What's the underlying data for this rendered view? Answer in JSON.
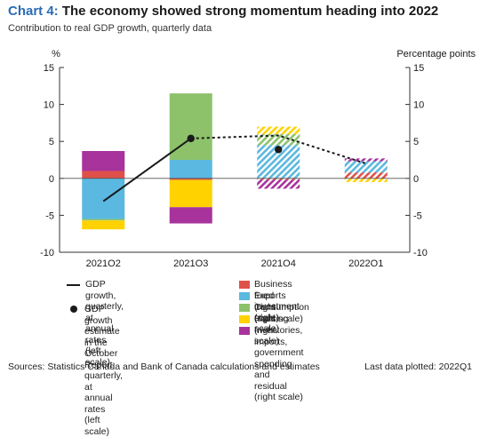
{
  "header": {
    "chart_number": "Chart 4:",
    "title_text": "The economy showed strong momentum heading into 2022",
    "subtitle": "Contribution to real GDP growth, quarterly data"
  },
  "footer": {
    "sources": "Sources: Statistics Canada and Bank of Canada calculations and estimates",
    "last_data": "Last data plotted: 2022Q1"
  },
  "legend": [
    {
      "kind": "line",
      "label": "GDP growth, quarterly, at annual\nrates (left scale)"
    },
    {
      "kind": "dot",
      "label": "GDP growth estimate in the\nOctober Report, quarterly, at\nannual rates (left scale)"
    },
    {
      "kind": "swatch",
      "color": "#e0504a",
      "label": "Business fixed investment (right scale)"
    },
    {
      "kind": "swatch",
      "color": "#5bb8e0",
      "label": "Exports (right scale)"
    },
    {
      "kind": "swatch",
      "color": "#8dc26b",
      "label": "Consumption (right scale)"
    },
    {
      "kind": "swatch",
      "color": "#ffd200",
      "label": "Housing (right scale)"
    },
    {
      "kind": "swatch",
      "color": "#a8339c",
      "label": "Inventories, imports, government\nspending and residual (right scale)"
    }
  ],
  "chart_data": {
    "type": "bar",
    "stacked": true,
    "categories": [
      "2021Q2",
      "2021Q3",
      "2021Q4",
      "2022Q1"
    ],
    "hatched_categories": [
      "2021Q4",
      "2022Q1"
    ],
    "ylabel": "%",
    "y2label": "Percentage points",
    "ylim": [
      -10,
      15
    ],
    "yticks": [
      -10,
      -5,
      0,
      5,
      10,
      15
    ],
    "colors": {
      "Business fixed investment (right scale)": "#e0504a",
      "Exports (right scale)": "#5bb8e0",
      "Consumption (right scale)": "#8dc26b",
      "Housing (right scale)": "#ffd200",
      "Inventories, imports, government spending and residual (right scale)": "#a8339c"
    },
    "series": [
      {
        "name": "Business fixed investment (right scale)",
        "values": [
          1.0,
          -0.2,
          -0.2,
          0.8
        ]
      },
      {
        "name": "Exports (right scale)",
        "values": [
          -5.5,
          2.5,
          4.5,
          1.5
        ]
      },
      {
        "name": "Consumption (right scale)",
        "values": [
          -0.2,
          9.0,
          1.5,
          0.0
        ]
      },
      {
        "name": "Housing (right scale)",
        "values": [
          -1.2,
          -3.7,
          1.0,
          -0.5
        ]
      },
      {
        "name": "Inventories, imports, government spending and residual (right scale)",
        "values": [
          2.7,
          -2.2,
          -1.2,
          0.4
        ]
      }
    ],
    "gdp_line": {
      "name": "GDP growth, quarterly, at annual rates (left scale)",
      "values": [
        -3.1,
        5.4,
        5.8,
        2.0
      ],
      "dashed_from_index": 1
    },
    "gdp_estimate": {
      "name": "GDP growth estimate in the October Report, quarterly, at annual rates (left scale)",
      "category": "2021Q4",
      "value": 3.9
    }
  }
}
